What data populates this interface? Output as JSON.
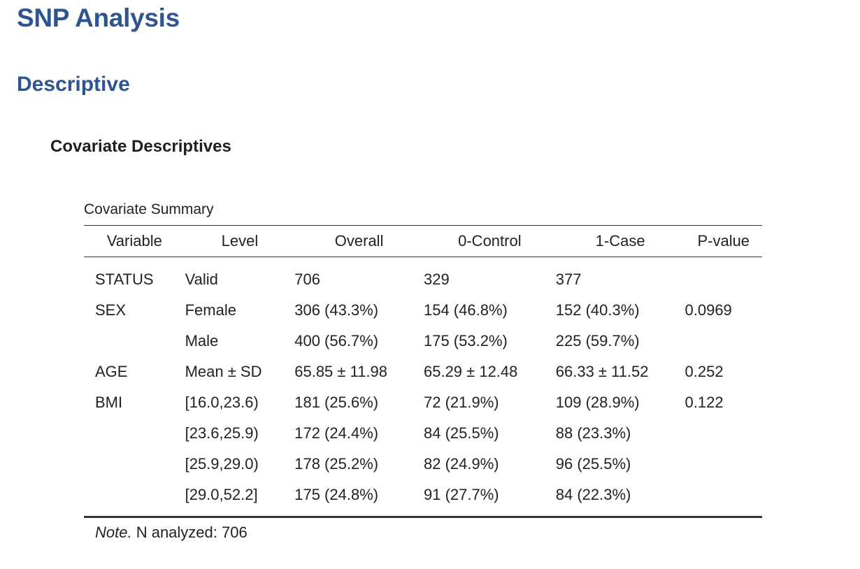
{
  "page": {
    "title": "SNP Analysis",
    "section": "Descriptive",
    "subsection": "Covariate Descriptives"
  },
  "table": {
    "caption": "Covariate Summary",
    "headers": [
      "Variable",
      "Level",
      "Overall",
      "0-Control",
      "1-Case",
      "P-value"
    ],
    "rows": [
      [
        "STATUS",
        "Valid",
        "706",
        "329",
        "377",
        ""
      ],
      [
        "SEX",
        "Female",
        "306 (43.3%)",
        "154 (46.8%)",
        "152 (40.3%)",
        "0.0969"
      ],
      [
        "",
        "Male",
        "400 (56.7%)",
        "175 (53.2%)",
        "225 (59.7%)",
        ""
      ],
      [
        "AGE",
        "Mean ± SD",
        "65.85 ± 11.98",
        "65.29 ± 12.48",
        "66.33 ± 11.52",
        "0.252"
      ],
      [
        "BMI",
        "[16.0,23.6)",
        "181 (25.6%)",
        "72 (21.9%)",
        "109 (28.9%)",
        "0.122"
      ],
      [
        "",
        "[23.6,25.9)",
        "172 (24.4%)",
        "84 (25.5%)",
        "88 (23.3%)",
        ""
      ],
      [
        "",
        "[25.9,29.0)",
        "178 (25.2%)",
        "82 (24.9%)",
        "96 (25.5%)",
        ""
      ],
      [
        "",
        "[29.0,52.2]",
        "175 (24.8%)",
        "91 (27.7%)",
        "84 (22.3%)",
        ""
      ]
    ],
    "note_label": "Note.",
    "note_text": " N analyzed: 706"
  }
}
